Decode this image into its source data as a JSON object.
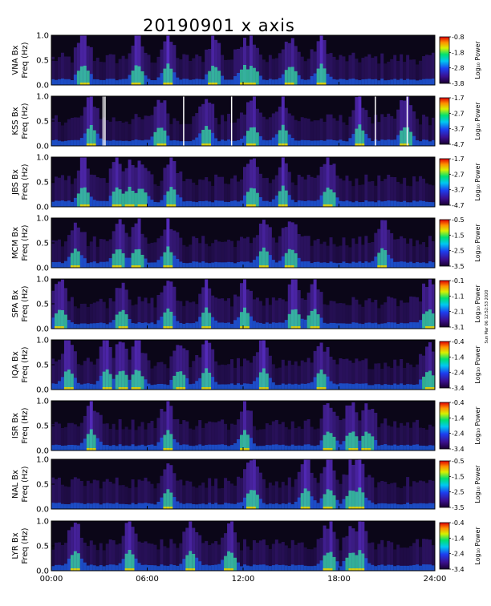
{
  "chart_data": {
    "type": "heatmap",
    "title": "20190901 x axis",
    "colorbar_label": "Log₁₀ Power",
    "yticks": [
      "0.0",
      "0.5",
      "1.0"
    ],
    "ylim": [
      0,
      1
    ],
    "xticks": [
      "00:00",
      "06:00",
      "12:00",
      "18:00",
      "24:00"
    ],
    "xlim": [
      0,
      24
    ],
    "side_stamp": "Sun Mar 06 12:52:53 2020",
    "panels": [
      {
        "station": "VNA",
        "ylabel": "VNA Bx\nFreq (Hz)",
        "cbar": [
          "-0.8",
          "-1.8",
          "-2.8",
          "-3.8"
        ]
      },
      {
        "station": "KSS",
        "ylabel": "KSS Bx\nFreq (Hz)",
        "cbar": [
          "-1.7",
          "-2.7",
          "-3.7",
          "-4.7"
        ]
      },
      {
        "station": "JBS",
        "ylabel": "JBS Bx\nFreq (Hz)",
        "cbar": [
          "-1.7",
          "-2.7",
          "-3.7",
          "-4.7"
        ]
      },
      {
        "station": "MCM",
        "ylabel": "MCM Bx\nFreq (Hz)",
        "cbar": [
          "-0.5",
          "-1.5",
          "-2.5",
          "-3.5"
        ]
      },
      {
        "station": "SPA",
        "ylabel": "SPA Bx\nFreq (Hz)",
        "cbar": [
          "-0.1",
          "-1.1",
          "-2.1",
          "-3.1"
        ]
      },
      {
        "station": "IQA",
        "ylabel": "IQA Bx\nFreq (Hz)",
        "cbar": [
          "-0.4",
          "-1.4",
          "-2.4",
          "-3.4"
        ]
      },
      {
        "station": "ISR",
        "ylabel": "ISR Bx\nFreq (Hz)",
        "cbar": [
          "-0.4",
          "-1.4",
          "-2.4",
          "-3.4"
        ]
      },
      {
        "station": "NAL",
        "ylabel": "NAL Bx\nFreq (Hz)",
        "cbar": [
          "-0.5",
          "-1.5",
          "-2.5",
          "-3.5"
        ]
      },
      {
        "station": "LYR",
        "ylabel": "LYR Bx\nFreq (Hz)",
        "cbar": [
          "-0.4",
          "-1.4",
          "-2.4",
          "-3.4"
        ]
      }
    ]
  }
}
